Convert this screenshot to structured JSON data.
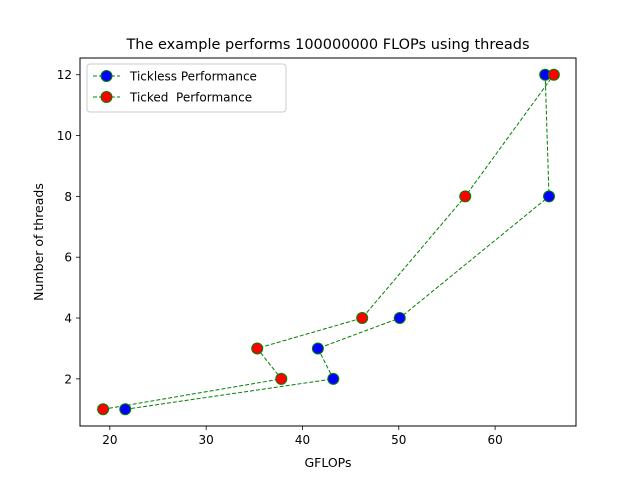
{
  "chart_data": {
    "type": "line",
    "title": "The example performs 100000000 FLOPs using threads",
    "xlabel": "GFLOPs",
    "ylabel": "Number of threads",
    "xlim": [
      16.9,
      68.4
    ],
    "ylim": [
      0.45,
      12.55
    ],
    "xticks": [
      20,
      30,
      40,
      50,
      60
    ],
    "yticks": [
      2,
      4,
      6,
      8,
      10,
      12
    ],
    "grid": false,
    "legend_position": "top-left",
    "line_color": "#008000",
    "line_style": "dashed",
    "marker_edge_color": "#008000",
    "series": [
      {
        "name": "Tickless Performance",
        "marker_color": "#0000ff",
        "points": [
          {
            "x": 21.6,
            "y": 1
          },
          {
            "x": 43.2,
            "y": 2
          },
          {
            "x": 41.6,
            "y": 3
          },
          {
            "x": 50.1,
            "y": 4
          },
          {
            "x": 65.6,
            "y": 8
          },
          {
            "x": 65.2,
            "y": 12
          }
        ]
      },
      {
        "name": "Ticked  Performance",
        "marker_color": "#ff0000",
        "points": [
          {
            "x": 19.3,
            "y": 1
          },
          {
            "x": 37.8,
            "y": 2
          },
          {
            "x": 35.3,
            "y": 3
          },
          {
            "x": 46.2,
            "y": 4
          },
          {
            "x": 56.9,
            "y": 8
          },
          {
            "x": 66.1,
            "y": 12
          }
        ]
      }
    ]
  }
}
